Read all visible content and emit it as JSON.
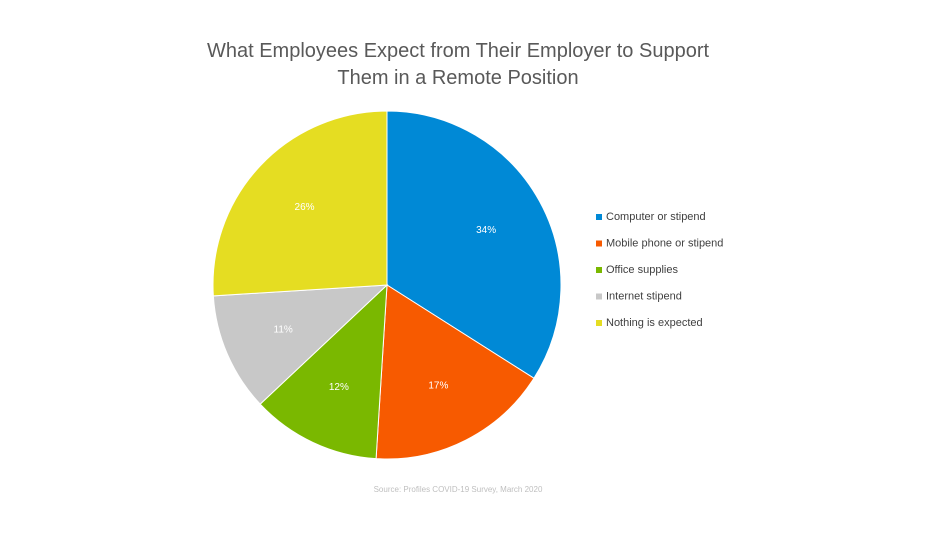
{
  "chart_data": {
    "type": "pie",
    "title": "What Employees Expect from Their Employer to Support Them in a Remote Position",
    "source": "Source: Profiles COVID-19 Survey, March 2020",
    "categories": [
      "Computer or stipend",
      "Mobile phone or stipend",
      "Office supplies",
      "Internet stipend",
      "Nothing is expected"
    ],
    "values": [
      34,
      17,
      12,
      11,
      26
    ],
    "value_labels": [
      "34%",
      "17%",
      "12%",
      "11%",
      "26%"
    ],
    "colors": [
      "#0089d6",
      "#f75a00",
      "#7ab800",
      "#c8c8c8",
      "#e5dd22"
    ],
    "legend": "right"
  }
}
